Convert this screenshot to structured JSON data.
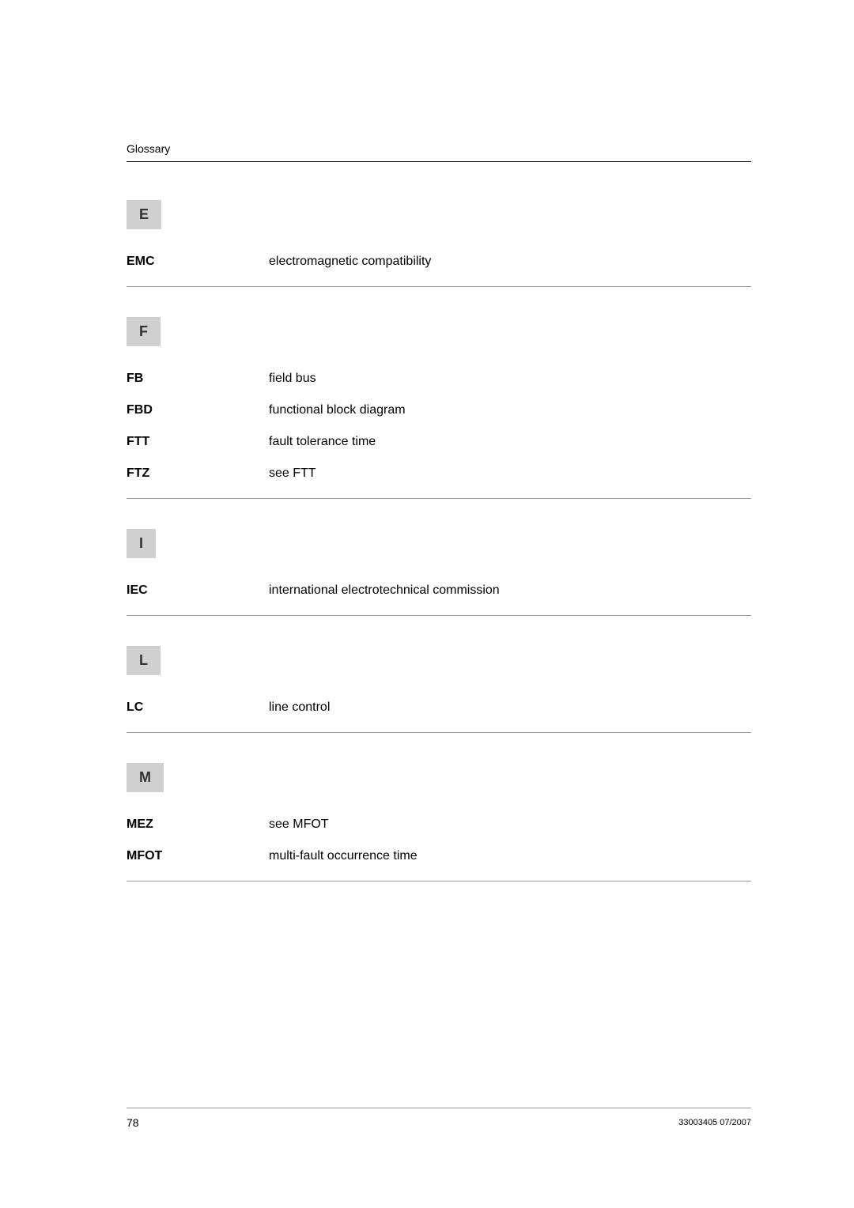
{
  "header": {
    "title": "Glossary"
  },
  "sections": {
    "E": {
      "letter": "E",
      "entries": {
        "EMC": {
          "term": "EMC",
          "def": "electromagnetic compatibility"
        }
      }
    },
    "F": {
      "letter": "F",
      "entries": {
        "FB": {
          "term": "FB",
          "def": "field bus"
        },
        "FBD": {
          "term": "FBD",
          "def": "functional block diagram"
        },
        "FTT": {
          "term": "FTT",
          "def": "fault tolerance time"
        },
        "FTZ": {
          "term": "FTZ",
          "def": "see FTT"
        }
      }
    },
    "I": {
      "letter": "I",
      "entries": {
        "IEC": {
          "term": "IEC",
          "def": "international electrotechnical commission"
        }
      }
    },
    "L": {
      "letter": "L",
      "entries": {
        "LC": {
          "term": "LC",
          "def": "line control"
        }
      }
    },
    "M": {
      "letter": "M",
      "entries": {
        "MEZ": {
          "term": "MEZ",
          "def": "see MFOT"
        },
        "MFOT": {
          "term": "MFOT",
          "def": "multi-fault occurrence time"
        }
      }
    }
  },
  "footer": {
    "pageNumber": "78",
    "docId": "33003405 07/2007"
  },
  "colors": {
    "background": "#ffffff",
    "text": "#000000",
    "letterBoxBg": "#d0d0d0",
    "ruleColor": "#999999"
  }
}
